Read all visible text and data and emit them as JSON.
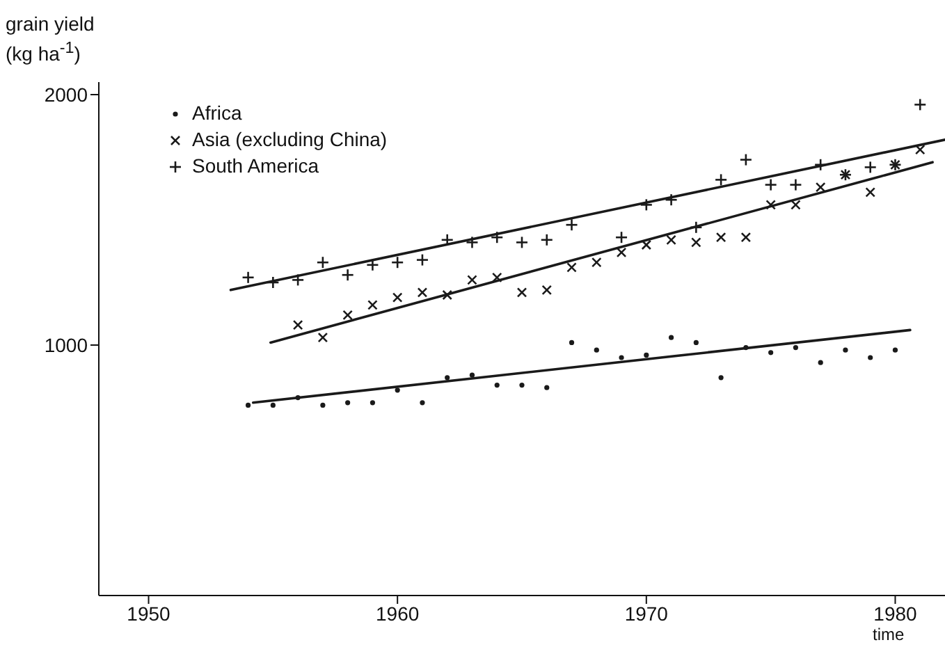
{
  "chart_data": {
    "type": "scatter",
    "xlabel": "time",
    "ylabel": "grain yield (kg ha$^{-1}$)",
    "xlim": [
      1948,
      1982
    ],
    "ylim": [
      0,
      2050
    ],
    "xticks": [
      1950,
      1960,
      1970,
      1980
    ],
    "yticks": [
      1000,
      2000
    ],
    "legend": "top left",
    "series": [
      {
        "name": "Africa",
        "marker": "circle",
        "color": "#1a1a1a",
        "x": [
          1954,
          1955,
          1956,
          1957,
          1958,
          1959,
          1960,
          1961,
          1962,
          1963,
          1964,
          1965,
          1966,
          1967,
          1968,
          1969,
          1970,
          1971,
          1972,
          1973,
          1974,
          1975,
          1976,
          1977,
          1978,
          1979,
          1980
        ],
        "values": [
          760,
          760,
          790,
          760,
          770,
          770,
          820,
          770,
          870,
          880,
          840,
          840,
          830,
          1010,
          980,
          950,
          960,
          1030,
          1010,
          870,
          990,
          970,
          990,
          930,
          980,
          950,
          980
        ]
      },
      {
        "name": "Asia (excluding China)",
        "marker": "cross",
        "color": "#1a1a1a",
        "x": [
          1956,
          1957,
          1958,
          1959,
          1960,
          1961,
          1962,
          1963,
          1964,
          1965,
          1966,
          1967,
          1968,
          1969,
          1970,
          1971,
          1972,
          1973,
          1974,
          1975,
          1976,
          1977,
          1978,
          1979,
          1980,
          1981
        ],
        "values": [
          1080,
          1030,
          1120,
          1160,
          1190,
          1210,
          1200,
          1260,
          1270,
          1210,
          1220,
          1310,
          1330,
          1370,
          1400,
          1420,
          1410,
          1430,
          1430,
          1560,
          1560,
          1630,
          1680,
          1610,
          1720,
          1780
        ]
      },
      {
        "name": "South America",
        "marker": "plus",
        "color": "#1a1a1a",
        "x": [
          1954,
          1955,
          1956,
          1957,
          1958,
          1959,
          1960,
          1961,
          1962,
          1963,
          1964,
          1965,
          1966,
          1967,
          1969,
          1970,
          1971,
          1972,
          1973,
          1974,
          1975,
          1976,
          1977,
          1978,
          1979,
          1980,
          1981
        ],
        "values": [
          1270,
          1250,
          1260,
          1330,
          1280,
          1320,
          1330,
          1340,
          1420,
          1410,
          1430,
          1410,
          1420,
          1480,
          1430,
          1560,
          1580,
          1470,
          1660,
          1740,
          1640,
          1640,
          1720,
          1680,
          1710,
          1720,
          1960
        ]
      },
      {
        "type": "line",
        "color": "#1a1a1a",
        "line_style": "solid",
        "x": [
          1954.2,
          1980.6
        ],
        "values": [
          770,
          1060
        ]
      },
      {
        "type": "line",
        "color": "#1a1a1a",
        "line_style": "solid",
        "x": [
          1954.9,
          1981.5
        ],
        "values": [
          1010,
          1730
        ]
      },
      {
        "type": "line",
        "color": "#1a1a1a",
        "line_style": "solid",
        "x": [
          1953.3,
          1982
        ],
        "values": [
          1220,
          1820
        ]
      }
    ]
  }
}
